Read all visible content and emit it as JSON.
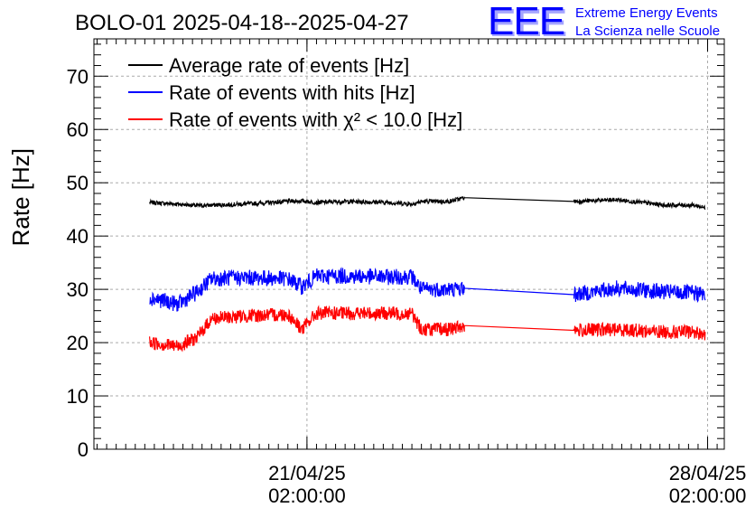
{
  "chart_data": {
    "type": "line",
    "title": "BOLO-01 2025-04-18--2025-04-27",
    "ylabel": "Rate [Hz]",
    "xlabel": "",
    "ylim": [
      0,
      77
    ],
    "grid": true,
    "legend_placement": "top-left",
    "y_ticks": [
      "0",
      "10",
      "20",
      "30",
      "40",
      "50",
      "60",
      "70"
    ],
    "x_tick_labels": [
      {
        "date": "21/04/25",
        "time": "02:00:00"
      },
      {
        "date": "28/04/25",
        "time": "02:00:00"
      }
    ],
    "x_range": [
      "2025-04-17 08:40",
      "2025-04-28 09:00"
    ],
    "x": [
      "2025-04-18 08:00",
      "2025-04-18 20:00",
      "2025-04-19 04:00",
      "2025-04-19 10:00",
      "2025-04-20 00:00",
      "2025-04-20 18:00",
      "2025-04-21 00:00",
      "2025-04-21 06:00",
      "2025-04-21 18:00",
      "2025-04-22 12:00",
      "2025-04-22 22:00",
      "2025-04-23 02:00",
      "2025-04-23 14:00",
      "2025-04-23 20:00",
      "2025-04-25 18:00",
      "2025-04-26 12:00",
      "2025-04-27 08:00",
      "2025-04-27 20:00",
      "2025-04-28 01:00"
    ],
    "series": [
      {
        "name": "Average rate of events [Hz]",
        "color": "#000000",
        "noise": 0.4,
        "values": [
          46.3,
          46.0,
          45.7,
          45.8,
          46.0,
          46.5,
          46.6,
          46.3,
          46.5,
          46.3,
          46.0,
          46.5,
          46.5,
          47.2,
          46.5,
          46.8,
          45.8,
          45.8,
          45.3
        ]
      },
      {
        "name": "Rate of events with hits [Hz]",
        "color": "#0000ff",
        "noise": 1.5,
        "values": [
          28.5,
          27.2,
          29.5,
          32.0,
          32.2,
          32.0,
          30.5,
          32.5,
          32.5,
          32.3,
          32.4,
          30.0,
          30.0,
          30.2,
          29.0,
          30.2,
          29.5,
          29.3,
          29.0
        ]
      },
      {
        "name": "Rate of events with χ² < 10.0 [Hz]",
        "color": "#ff0000",
        "noise": 1.3,
        "values": [
          20.0,
          19.3,
          21.0,
          24.5,
          25.0,
          25.3,
          22.5,
          25.5,
          25.5,
          25.5,
          25.5,
          22.5,
          22.5,
          23.2,
          22.3,
          22.5,
          22.0,
          22.0,
          21.5
        ]
      }
    ],
    "gaps_connected_by_straight_line": [
      [
        "2025-04-23 20:00",
        "2025-04-25 18:00"
      ]
    ]
  },
  "logo": {
    "text": "EEE",
    "line1": "Extreme Energy Events",
    "line2": "La Scienza nelle Scuole",
    "color": "#0000ff"
  }
}
